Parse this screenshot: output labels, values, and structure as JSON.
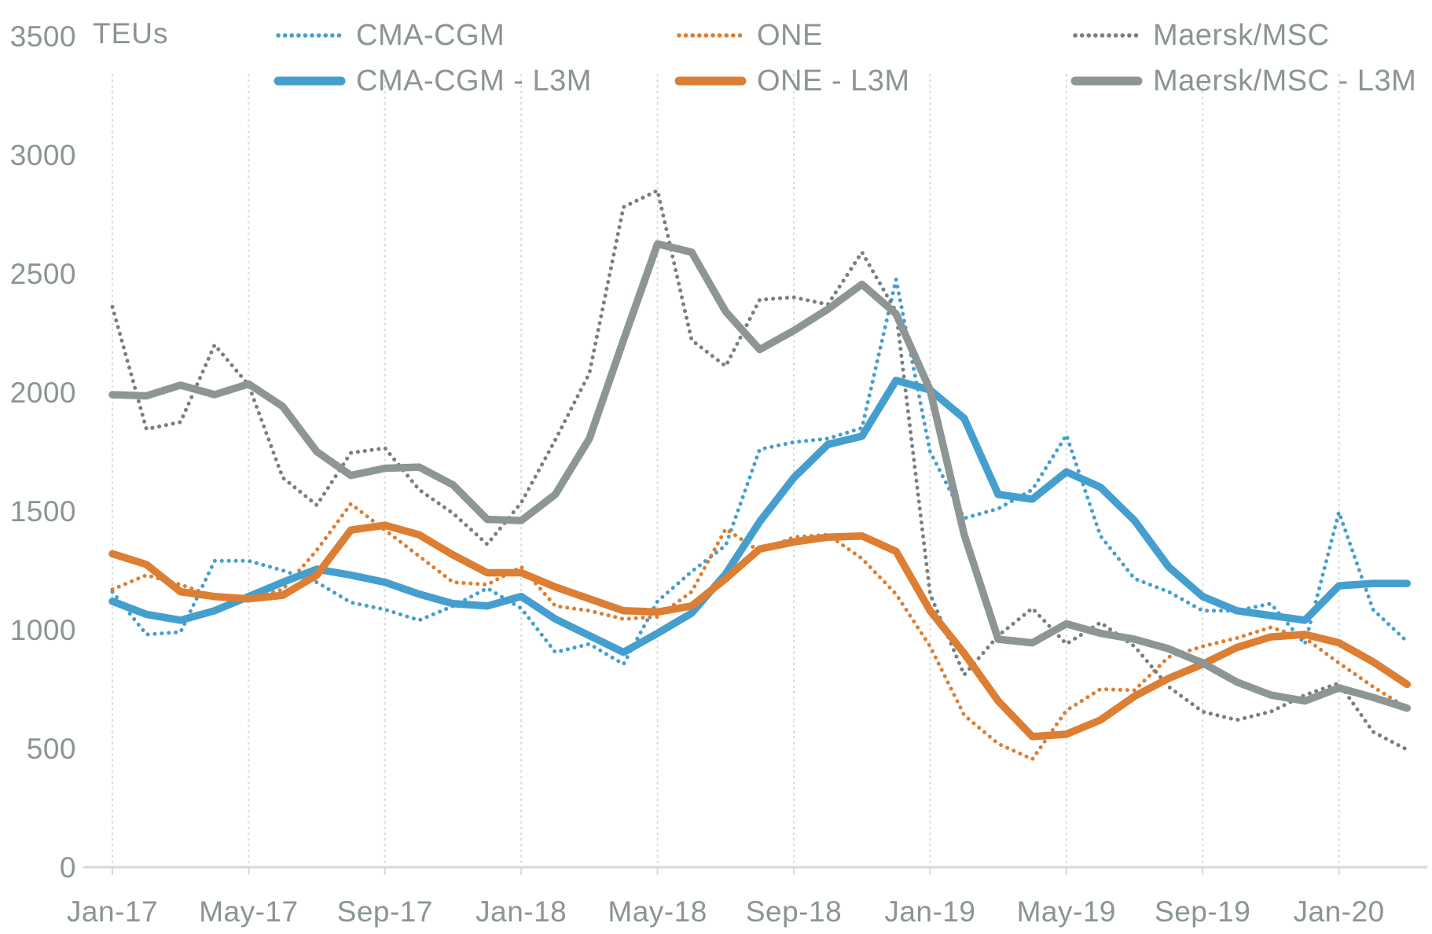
{
  "unit_label": "TEUs",
  "colors": {
    "background": "#ffffff",
    "text": "#8a9594",
    "gridline": "#d9dddc",
    "axis_line": "#d6dad9",
    "blue": "#459fce",
    "orange": "#dc7e33",
    "gray_dotted": "#76817f",
    "gray_solid": "#8d9695"
  },
  "legend": {
    "rows": [
      [
        "CMA-CGM",
        "ONE",
        "Maersk/MSC"
      ],
      [
        "CMA-CGM - L3M",
        "ONE - L3M",
        "Maersk/MSC - L3M"
      ]
    ]
  },
  "chart_data": {
    "type": "line",
    "title": "",
    "ylabel": "TEUs",
    "xlabel": "",
    "ylim": [
      0,
      3500
    ],
    "yticks": [
      0,
      500,
      1000,
      1500,
      2000,
      2500,
      3000,
      3500
    ],
    "grid": "vertical dotted gridlines at labeled months only, no horizontal gridlines",
    "legend_position": "top",
    "x_axis_labels": [
      "Jan-17",
      "May-17",
      "Sep-17",
      "Jan-18",
      "May-18",
      "Sep-18",
      "Jan-19",
      "May-19",
      "Sep-19",
      "Jan-20"
    ],
    "categories": [
      "Jan-17",
      "Feb-17",
      "Mar-17",
      "Apr-17",
      "May-17",
      "Jun-17",
      "Jul-17",
      "Aug-17",
      "Sep-17",
      "Oct-17",
      "Nov-17",
      "Dec-17",
      "Jan-18",
      "Feb-18",
      "Mar-18",
      "Apr-18",
      "May-18",
      "Jun-18",
      "Jul-18",
      "Aug-18",
      "Sep-18",
      "Oct-18",
      "Nov-18",
      "Dec-18",
      "Jan-19",
      "Feb-19",
      "Mar-19",
      "Apr-19",
      "May-19",
      "Jun-19",
      "Jul-19",
      "Aug-19",
      "Sep-19",
      "Oct-19",
      "Nov-19",
      "Dec-19",
      "Jan-20",
      "Feb-20",
      "Mar-20"
    ],
    "series": [
      {
        "name": "CMA-CGM",
        "style": "dotted",
        "color": "#459fce",
        "values": [
          1160,
          980,
          990,
          1290,
          1290,
          1250,
          1200,
          1115,
          1085,
          1040,
          1100,
          1175,
          1090,
          905,
          940,
          855,
          1120,
          1245,
          1355,
          1760,
          1790,
          1805,
          1850,
          2475,
          1750,
          1470,
          1510,
          1590,
          1820,
          1395,
          1215,
          1160,
          1080,
          1080,
          1110,
          940,
          1495,
          1085,
          950
        ]
      },
      {
        "name": "ONE",
        "style": "dotted",
        "color": "#dc7e33",
        "values": [
          1170,
          1230,
          1190,
          1140,
          1130,
          1170,
          1335,
          1530,
          1420,
          1310,
          1200,
          1190,
          1265,
          1100,
          1080,
          1045,
          1055,
          1160,
          1425,
          1330,
          1390,
          1400,
          1300,
          1150,
          930,
          640,
          520,
          455,
          660,
          750,
          745,
          885,
          930,
          965,
          1010,
          965,
          860,
          760,
          670
        ]
      },
      {
        "name": "Maersk/MSC",
        "style": "dotted",
        "color": "#76817f",
        "values": [
          2360,
          1845,
          1875,
          2200,
          2030,
          1640,
          1525,
          1745,
          1765,
          1590,
          1490,
          1360,
          1535,
          1800,
          2080,
          2780,
          2850,
          2220,
          2110,
          2390,
          2400,
          2370,
          2590,
          2340,
          1150,
          810,
          975,
          1090,
          940,
          1030,
          930,
          760,
          655,
          620,
          655,
          725,
          775,
          570,
          495
        ]
      },
      {
        "name": "CMA-CGM - L3M",
        "style": "solid",
        "color": "#459fce",
        "values": [
          1120,
          1065,
          1040,
          1080,
          1140,
          1200,
          1255,
          1230,
          1200,
          1150,
          1110,
          1100,
          1140,
          1045,
          975,
          905,
          985,
          1070,
          1235,
          1455,
          1640,
          1780,
          1815,
          2050,
          2010,
          1890,
          1570,
          1550,
          1665,
          1600,
          1460,
          1265,
          1140,
          1080,
          1060,
          1040,
          1185,
          1195,
          1195
        ]
      },
      {
        "name": "ONE - L3M",
        "style": "solid",
        "color": "#dc7e33",
        "values": [
          1320,
          1275,
          1160,
          1140,
          1130,
          1145,
          1230,
          1420,
          1440,
          1400,
          1315,
          1240,
          1240,
          1180,
          1130,
          1080,
          1075,
          1100,
          1215,
          1340,
          1370,
          1390,
          1395,
          1330,
          1080,
          900,
          700,
          550,
          560,
          620,
          720,
          795,
          855,
          925,
          970,
          980,
          945,
          865,
          770
        ]
      },
      {
        "name": "Maersk/MSC - L3M",
        "style": "solid",
        "color": "#8d9695",
        "values": [
          1990,
          1985,
          2030,
          1990,
          2035,
          1940,
          1750,
          1650,
          1680,
          1685,
          1610,
          1465,
          1460,
          1570,
          1805,
          2220,
          2625,
          2590,
          2340,
          2180,
          2260,
          2350,
          2455,
          2330,
          2010,
          1400,
          960,
          945,
          1025,
          985,
          960,
          920,
          860,
          780,
          725,
          700,
          755,
          715,
          670
        ]
      }
    ]
  }
}
